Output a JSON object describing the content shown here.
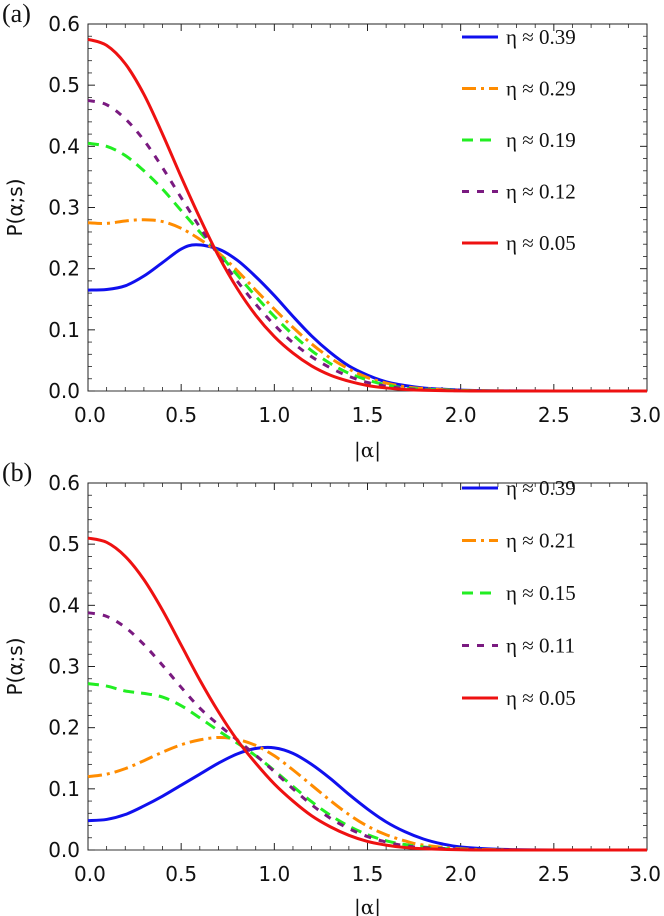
{
  "chart_data": [
    {
      "type": "line",
      "panel_label": "(a)",
      "xlabel": "|α|",
      "ylabel": "P(α;s)",
      "xlim": [
        0,
        3
      ],
      "ylim": [
        0,
        0.6
      ],
      "x_ticks": [
        "0.0",
        "0.5",
        "1.0",
        "1.5",
        "2.0",
        "2.5",
        "3.0"
      ],
      "y_ticks": [
        "0.0",
        "0.1",
        "0.2",
        "0.3",
        "0.4",
        "0.5",
        "0.6"
      ],
      "legend_position": "top-right",
      "series": [
        {
          "name": "η ≈ 0.39",
          "color": "#1010ee",
          "style": "solid",
          "x": [
            0,
            0.1,
            0.2,
            0.3,
            0.4,
            0.5,
            0.58,
            0.7,
            0.8,
            0.9,
            1.0,
            1.1,
            1.2,
            1.3,
            1.4,
            1.5,
            1.6,
            1.7,
            1.8,
            1.9,
            2.0,
            2.2,
            2.5,
            3.0
          ],
          "y": [
            0.165,
            0.166,
            0.172,
            0.188,
            0.21,
            0.232,
            0.239,
            0.232,
            0.214,
            0.187,
            0.156,
            0.122,
            0.09,
            0.063,
            0.041,
            0.026,
            0.015,
            0.009,
            0.005,
            0.003,
            0.0015,
            0.0003,
            0,
            0
          ]
        },
        {
          "name": "η ≈ 0.29",
          "color": "#ff8c00",
          "style": "dashdot",
          "x": [
            0,
            0.1,
            0.2,
            0.3,
            0.4,
            0.5,
            0.6,
            0.7,
            0.8,
            0.9,
            1.0,
            1.1,
            1.2,
            1.3,
            1.4,
            1.5,
            1.6,
            1.7,
            1.8,
            2.0,
            2.2,
            2.5,
            3.0
          ],
          "y": [
            0.275,
            0.274,
            0.278,
            0.28,
            0.277,
            0.266,
            0.248,
            0.226,
            0.197,
            0.165,
            0.134,
            0.104,
            0.077,
            0.054,
            0.036,
            0.022,
            0.013,
            0.007,
            0.004,
            0.001,
            0.0002,
            0,
            0
          ]
        },
        {
          "name": "η ≈ 0.19",
          "color": "#22ee22",
          "style": "dashed",
          "x": [
            0,
            0.1,
            0.2,
            0.3,
            0.4,
            0.5,
            0.6,
            0.7,
            0.8,
            0.9,
            1.0,
            1.1,
            1.2,
            1.3,
            1.4,
            1.5,
            1.6,
            1.7,
            1.8,
            2.0,
            2.2,
            2.5,
            3.0
          ],
          "y": [
            0.405,
            0.4,
            0.385,
            0.36,
            0.33,
            0.295,
            0.26,
            0.226,
            0.19,
            0.155,
            0.122,
            0.092,
            0.066,
            0.045,
            0.029,
            0.018,
            0.01,
            0.005,
            0.003,
            0.0008,
            0.0001,
            0,
            0
          ]
        },
        {
          "name": "η ≈ 0.12",
          "color": "#7a1a80",
          "style": "shortdash",
          "x": [
            0,
            0.1,
            0.2,
            0.3,
            0.4,
            0.5,
            0.6,
            0.7,
            0.8,
            0.9,
            1.0,
            1.1,
            1.2,
            1.3,
            1.4,
            1.5,
            1.6,
            1.7,
            1.8,
            2.0,
            2.2,
            2.5,
            3.0
          ],
          "y": [
            0.475,
            0.468,
            0.445,
            0.41,
            0.365,
            0.316,
            0.268,
            0.222,
            0.18,
            0.142,
            0.108,
            0.079,
            0.056,
            0.038,
            0.024,
            0.014,
            0.008,
            0.004,
            0.002,
            0.0005,
            0,
            0,
            0
          ]
        },
        {
          "name": "η ≈ 0.05",
          "color": "#ee1111",
          "style": "solid",
          "x": [
            0,
            0.1,
            0.2,
            0.3,
            0.4,
            0.5,
            0.6,
            0.7,
            0.8,
            0.9,
            1.0,
            1.1,
            1.2,
            1.3,
            1.4,
            1.5,
            1.6,
            1.7,
            1.8,
            2.0,
            2.2,
            2.5,
            3.0
          ],
          "y": [
            0.575,
            0.565,
            0.535,
            0.485,
            0.42,
            0.35,
            0.283,
            0.221,
            0.168,
            0.124,
            0.089,
            0.062,
            0.041,
            0.026,
            0.016,
            0.009,
            0.005,
            0.0025,
            0.0012,
            0.0002,
            0,
            0,
            0
          ]
        }
      ]
    },
    {
      "type": "line",
      "panel_label": "(b)",
      "xlabel": "|α|",
      "ylabel": "P(α;s)",
      "xlim": [
        0,
        3
      ],
      "ylim": [
        0,
        0.6
      ],
      "x_ticks": [
        "0.0",
        "0.5",
        "1.0",
        "1.5",
        "2.0",
        "2.5",
        "3.0"
      ],
      "y_ticks": [
        "0.0",
        "0.1",
        "0.2",
        "0.3",
        "0.4",
        "0.5",
        "0.6"
      ],
      "legend_position": "top-right",
      "series": [
        {
          "name": "η ≈ 0.39",
          "color": "#1010ee",
          "style": "solid",
          "x": [
            0,
            0.1,
            0.2,
            0.3,
            0.4,
            0.5,
            0.6,
            0.7,
            0.8,
            0.9,
            1.0,
            1.1,
            1.2,
            1.3,
            1.4,
            1.5,
            1.6,
            1.7,
            1.8,
            1.9,
            2.0,
            2.2,
            2.5,
            3.0
          ],
          "y": [
            0.048,
            0.05,
            0.058,
            0.072,
            0.088,
            0.106,
            0.124,
            0.142,
            0.157,
            0.166,
            0.167,
            0.158,
            0.14,
            0.117,
            0.091,
            0.067,
            0.046,
            0.03,
            0.018,
            0.01,
            0.005,
            0.0012,
            0,
            0
          ]
        },
        {
          "name": "η ≈ 0.21",
          "color": "#ff8c00",
          "style": "dashdot",
          "x": [
            0,
            0.1,
            0.2,
            0.3,
            0.4,
            0.5,
            0.6,
            0.7,
            0.8,
            0.9,
            1.0,
            1.1,
            1.2,
            1.3,
            1.4,
            1.5,
            1.6,
            1.7,
            1.8,
            2.0,
            2.2,
            2.5,
            3.0
          ],
          "y": [
            0.12,
            0.124,
            0.133,
            0.146,
            0.16,
            0.172,
            0.18,
            0.184,
            0.181,
            0.171,
            0.154,
            0.131,
            0.106,
            0.081,
            0.058,
            0.039,
            0.025,
            0.015,
            0.008,
            0.002,
            0.0004,
            0,
            0
          ]
        },
        {
          "name": "η ≈ 0.15",
          "color": "#22ee22",
          "style": "dashed",
          "x": [
            0,
            0.1,
            0.2,
            0.3,
            0.4,
            0.5,
            0.6,
            0.7,
            0.8,
            0.9,
            1.0,
            1.1,
            1.2,
            1.3,
            1.4,
            1.5,
            1.6,
            1.7,
            1.8,
            2.0,
            2.2,
            2.5,
            3.0
          ],
          "y": [
            0.272,
            0.268,
            0.26,
            0.256,
            0.25,
            0.236,
            0.216,
            0.195,
            0.175,
            0.154,
            0.13,
            0.104,
            0.079,
            0.057,
            0.039,
            0.025,
            0.015,
            0.009,
            0.005,
            0.001,
            0.0002,
            0,
            0
          ]
        },
        {
          "name": "η ≈ 0.11",
          "color": "#7a1a80",
          "style": "shortdash",
          "x": [
            0,
            0.1,
            0.2,
            0.3,
            0.4,
            0.5,
            0.6,
            0.7,
            0.8,
            0.9,
            1.0,
            1.1,
            1.2,
            1.3,
            1.4,
            1.5,
            1.6,
            1.7,
            1.8,
            2.0,
            2.2,
            2.5,
            3.0
          ],
          "y": [
            0.388,
            0.382,
            0.364,
            0.336,
            0.302,
            0.266,
            0.232,
            0.205,
            0.18,
            0.155,
            0.128,
            0.1,
            0.074,
            0.052,
            0.035,
            0.022,
            0.013,
            0.007,
            0.004,
            0.001,
            0,
            0,
            0
          ]
        },
        {
          "name": "η ≈ 0.05",
          "color": "#ee1111",
          "style": "solid",
          "x": [
            0,
            0.1,
            0.2,
            0.3,
            0.4,
            0.5,
            0.6,
            0.7,
            0.8,
            0.9,
            1.0,
            1.1,
            1.2,
            1.3,
            1.4,
            1.5,
            1.6,
            1.7,
            1.8,
            2.0,
            2.2,
            2.5,
            3.0
          ],
          "y": [
            0.51,
            0.503,
            0.48,
            0.442,
            0.392,
            0.335,
            0.278,
            0.226,
            0.18,
            0.142,
            0.108,
            0.08,
            0.056,
            0.038,
            0.024,
            0.014,
            0.008,
            0.004,
            0.002,
            0.0004,
            0,
            0,
            0
          ]
        }
      ]
    }
  ]
}
